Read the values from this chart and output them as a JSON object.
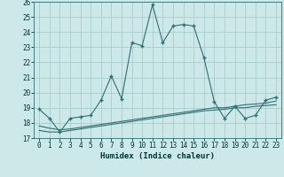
{
  "xlabel": "Humidex (Indice chaleur)",
  "bg_color": "#cce8e8",
  "grid_color": "#aacccc",
  "line_color": "#2d7070",
  "xlim": [
    -0.5,
    23.5
  ],
  "ylim": [
    17,
    26
  ],
  "yticks": [
    17,
    18,
    19,
    20,
    21,
    22,
    23,
    24,
    25,
    26
  ],
  "xticks": [
    0,
    1,
    2,
    3,
    4,
    5,
    6,
    7,
    8,
    9,
    10,
    11,
    12,
    13,
    14,
    15,
    16,
    17,
    18,
    19,
    20,
    21,
    22,
    23
  ],
  "curve1_x": [
    0,
    1,
    2,
    3,
    4,
    5,
    6,
    7,
    8,
    9,
    10,
    11,
    12,
    13,
    14,
    15,
    16,
    17,
    18,
    19,
    20,
    21,
    22,
    23
  ],
  "curve1_y": [
    18.9,
    18.3,
    17.4,
    18.3,
    18.4,
    18.5,
    19.5,
    21.1,
    19.6,
    23.3,
    23.1,
    25.8,
    23.3,
    24.4,
    24.5,
    24.4,
    22.3,
    19.4,
    18.3,
    19.1,
    18.3,
    18.5,
    19.5,
    19.7
  ],
  "curve2_x": [
    0,
    1,
    2,
    3,
    4,
    5,
    6,
    7,
    8,
    9,
    10,
    11,
    12,
    13,
    14,
    15,
    16,
    17,
    18,
    19,
    20,
    21,
    22,
    23
  ],
  "curve2_y": [
    17.5,
    17.4,
    17.4,
    17.5,
    17.6,
    17.7,
    17.8,
    17.9,
    18.0,
    18.1,
    18.2,
    18.3,
    18.4,
    18.5,
    18.6,
    18.7,
    18.8,
    18.85,
    18.9,
    19.0,
    19.0,
    19.1,
    19.15,
    19.2
  ],
  "curve3_x": [
    0,
    1,
    2,
    3,
    4,
    5,
    6,
    7,
    8,
    9,
    10,
    11,
    12,
    13,
    14,
    15,
    16,
    17,
    18,
    19,
    20,
    21,
    22,
    23
  ],
  "curve3_y": [
    17.8,
    17.65,
    17.55,
    17.6,
    17.7,
    17.8,
    17.9,
    18.0,
    18.1,
    18.2,
    18.3,
    18.4,
    18.5,
    18.6,
    18.7,
    18.8,
    18.9,
    19.0,
    19.0,
    19.1,
    19.2,
    19.25,
    19.3,
    19.45
  ]
}
